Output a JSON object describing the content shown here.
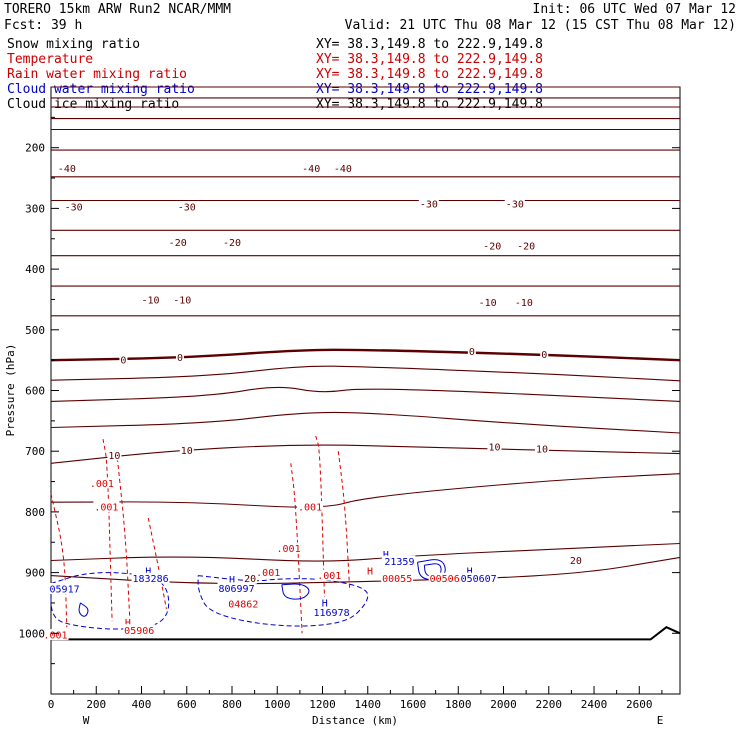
{
  "header": {
    "model": "TORERO  15km ARW   Run2    NCAR/MMM",
    "init": "Init: 06 UTC Wed 07 Mar 12",
    "fcst": "Fcst:   39 h",
    "valid": "Valid: 21 UTC Thu 08 Mar 12 (15 CST Thu 08 Mar 12)"
  },
  "legend": [
    {
      "name": "Snow mixing ratio",
      "color": "#000000",
      "xy": "XY=  38.3,149.8 to 222.9,149.8",
      "xy_color": "#000000"
    },
    {
      "name": "Temperature",
      "color": "#cc0000",
      "xy": "XY=  38.3,149.8 to 222.9,149.8",
      "xy_color": "#cc0000"
    },
    {
      "name": "Rain water mixing ratio",
      "color": "#cc0000",
      "xy": "XY=  38.3,149.8 to 222.9,149.8",
      "xy_color": "#cc0000"
    },
    {
      "name": "Cloud water mixing ratio",
      "color": "#0000cc",
      "xy": "XY=  38.3,149.8 to 222.9,149.8",
      "xy_color": "#0000cc"
    },
    {
      "name": "Cloud ice mixing ratio",
      "color": "#000000",
      "xy": "XY=  38.3,149.8 to 222.9,149.8",
      "xy_color": "#000000"
    }
  ],
  "chart_data": {
    "type": "cross-section contour",
    "title": "Vertical cross section",
    "xlabel": "Distance (km)",
    "ylabel": "Pressure (hPa)",
    "xlim": [
      0,
      2780
    ],
    "ylim": [
      1100,
      100
    ],
    "x_ticks": [
      0,
      200,
      400,
      600,
      800,
      1000,
      1200,
      1400,
      1600,
      1800,
      2000,
      2200,
      2400,
      2600
    ],
    "x_tick_labels": [
      "0",
      "200",
      "400",
      "600",
      "800",
      "1000",
      "1200",
      "1400",
      "1600",
      "1800",
      "2000",
      "2200",
      "2400",
      "2600"
    ],
    "y_ticks": [
      200,
      300,
      400,
      500,
      600,
      700,
      800,
      900,
      1000
    ],
    "y_tick_labels": [
      "200",
      "300",
      "400",
      "500",
      "600",
      "700",
      "800",
      "900",
      "1000"
    ],
    "left_end": "W",
    "right_end": "E",
    "terrain_top_p": [
      [
        0,
        1010
      ],
      [
        2650,
        1010
      ],
      [
        2720,
        990
      ],
      [
        2780,
        1000
      ]
    ],
    "temperature_contours": [
      {
        "value": -60,
        "points": [
          [
            0,
            100
          ],
          [
            2780,
            100
          ]
        ]
      },
      {
        "value": -55,
        "points": [
          [
            0,
            118
          ],
          [
            2780,
            118
          ]
        ]
      },
      {
        "value": -50,
        "points": [
          [
            0,
            133
          ],
          [
            2780,
            133
          ]
        ]
      },
      {
        "value": -45,
        "points": [
          [
            0,
            152
          ],
          [
            2780,
            152
          ]
        ]
      },
      {
        "value": -40,
        "points": [
          [
            0,
            170
          ],
          [
            2780,
            170
          ]
        ]
      },
      {
        "value": -35,
        "points": [
          [
            0,
            204
          ],
          [
            2780,
            204
          ]
        ]
      },
      {
        "value": -30,
        "points": [
          [
            0,
            248
          ],
          [
            2780,
            248
          ]
        ]
      },
      {
        "value": -25,
        "points": [
          [
            0,
            287
          ],
          [
            2780,
            287
          ]
        ]
      },
      {
        "value": -20,
        "points": [
          [
            0,
            336
          ],
          [
            2780,
            336
          ]
        ]
      },
      {
        "value": -15,
        "points": [
          [
            0,
            378
          ],
          [
            2780,
            378
          ]
        ]
      },
      {
        "value": -10,
        "points": [
          [
            0,
            428
          ],
          [
            2780,
            428
          ]
        ]
      },
      {
        "value": -5,
        "points": [
          [
            0,
            477
          ],
          [
            2780,
            477
          ]
        ]
      },
      {
        "value": 0,
        "points": [
          [
            0,
            550
          ],
          [
            600,
            546
          ],
          [
            1100,
            533
          ],
          [
            1400,
            533
          ],
          [
            2100,
            540
          ],
          [
            2780,
            550
          ]
        ]
      },
      {
        "value": 3,
        "points": [
          [
            0,
            583
          ],
          [
            700,
            577
          ],
          [
            1100,
            559
          ],
          [
            1400,
            561
          ],
          [
            2100,
            571
          ],
          [
            2780,
            584
          ]
        ]
      },
      {
        "value": 5,
        "points": [
          [
            0,
            618
          ],
          [
            700,
            610
          ],
          [
            1000,
            591
          ],
          [
            1200,
            605
          ],
          [
            1400,
            594
          ],
          [
            2780,
            618
          ]
        ]
      },
      {
        "value": 8,
        "points": [
          [
            0,
            661
          ],
          [
            700,
            654
          ],
          [
            1100,
            636
          ],
          [
            1400,
            636
          ],
          [
            2100,
            656
          ],
          [
            2780,
            670
          ]
        ]
      },
      {
        "value": 10,
        "points": [
          [
            0,
            720
          ],
          [
            500,
            700
          ],
          [
            1100,
            688
          ],
          [
            1700,
            694
          ],
          [
            2780,
            704
          ]
        ]
      },
      {
        "value": 15,
        "points": [
          [
            0,
            784
          ],
          [
            600,
            783
          ],
          [
            1200,
            796
          ],
          [
            1400,
            775
          ],
          [
            2200,
            748
          ],
          [
            2780,
            737
          ]
        ]
      },
      {
        "value": 18,
        "points": [
          [
            0,
            880
          ],
          [
            600,
            872
          ],
          [
            1200,
            884
          ],
          [
            1600,
            872
          ],
          [
            2300,
            860
          ],
          [
            2780,
            852
          ]
        ]
      },
      {
        "value": 20,
        "points": [
          [
            0,
            905
          ],
          [
            700,
            920
          ],
          [
            1400,
            915
          ],
          [
            2300,
            905
          ],
          [
            2780,
            875
          ]
        ]
      }
    ],
    "temperature_labels": [
      {
        "text": "-40",
        "x": 70,
        "p": 234
      },
      {
        "text": "-40",
        "x": 1150,
        "p": 234
      },
      {
        "text": "-40",
        "x": 1290,
        "p": 234
      },
      {
        "text": "-30",
        "x": 100,
        "p": 298
      },
      {
        "text": "-30",
        "x": 600,
        "p": 298
      },
      {
        "text": "-30",
        "x": 1670,
        "p": 293
      },
      {
        "text": "-30",
        "x": 2050,
        "p": 293
      },
      {
        "text": "-20",
        "x": 560,
        "p": 356
      },
      {
        "text": "-20",
        "x": 800,
        "p": 356
      },
      {
        "text": "-20",
        "x": 1950,
        "p": 362
      },
      {
        "text": "-20",
        "x": 2100,
        "p": 362
      },
      {
        "text": "-10",
        "x": 440,
        "p": 451
      },
      {
        "text": "-10",
        "x": 580,
        "p": 451
      },
      {
        "text": "-10",
        "x": 1930,
        "p": 455
      },
      {
        "text": "-10",
        "x": 2090,
        "p": 455
      },
      {
        "text": "0",
        "x": 320,
        "p": 550
      },
      {
        "text": "0",
        "x": 570,
        "p": 546
      },
      {
        "text": "0",
        "x": 1860,
        "p": 536
      },
      {
        "text": "0",
        "x": 2180,
        "p": 541
      },
      {
        "text": "10",
        "x": 280,
        "p": 707
      },
      {
        "text": "10",
        "x": 600,
        "p": 699
      },
      {
        "text": "10",
        "x": 1960,
        "p": 693
      },
      {
        "text": "10",
        "x": 2170,
        "p": 696
      },
      {
        "text": "20",
        "x": 880,
        "p": 910
      },
      {
        "text": "20",
        "x": 2320,
        "p": 880
      }
    ],
    "rain_water_contours": [
      {
        "value": 0.001,
        "points": [
          [
            0,
            770
          ],
          [
            60,
            870
          ],
          [
            70,
            990
          ]
        ]
      },
      {
        "value": 0.001,
        "points": [
          [
            230,
            680
          ],
          [
            250,
            720
          ],
          [
            270,
            980
          ]
        ]
      },
      {
        "value": 0.001,
        "points": [
          [
            290,
            700
          ],
          [
            330,
            840
          ],
          [
            350,
            990
          ]
        ]
      },
      {
        "value": 0.001,
        "points": [
          [
            430,
            810
          ],
          [
            480,
            900
          ],
          [
            510,
            960
          ]
        ]
      },
      {
        "value": 0.001,
        "points": [
          [
            1060,
            720
          ],
          [
            1080,
            780
          ],
          [
            1110,
            1000
          ]
        ]
      },
      {
        "value": 0.001,
        "points": [
          [
            1170,
            675
          ],
          [
            1190,
            700
          ],
          [
            1210,
            960
          ]
        ]
      },
      {
        "value": 0.001,
        "points": [
          [
            1270,
            700
          ],
          [
            1300,
            790
          ],
          [
            1320,
            930
          ]
        ]
      }
    ],
    "rain_water_labels": [
      {
        "text": ".001",
        "x": 225,
        "p": 753
      },
      {
        "text": ".001",
        "x": 245,
        "p": 792
      },
      {
        "text": ".001",
        "x": 1145,
        "p": 792
      },
      {
        "text": ".001",
        "x": 1050,
        "p": 860
      },
      {
        "text": ".001",
        "x": 960,
        "p": 900
      },
      {
        "text": ".001",
        "x": 20,
        "p": 1003
      }
    ],
    "cloud_water_max_labels": [
      {
        "text": "H",
        "x": 430,
        "p": 897
      },
      {
        "text": "183286",
        "x": 440,
        "p": 910
      },
      {
        "text": "H",
        "x": 800,
        "p": 911
      },
      {
        "text": "806997",
        "x": 820,
        "p": 926
      },
      {
        "text": "H",
        "x": 1210,
        "p": 950
      },
      {
        "text": "116978",
        "x": 1240,
        "p": 966
      },
      {
        "text": "H",
        "x": 1480,
        "p": 870
      },
      {
        "text": "21359",
        "x": 1540,
        "p": 882
      },
      {
        "text": "H",
        "x": 1850,
        "p": 897
      },
      {
        "text": "050607",
        "x": 1890,
        "p": 910
      },
      {
        "text": "05917",
        "x": 60,
        "p": 927
      }
    ],
    "rain_water_max_labels": [
      {
        "text": "H",
        "x": 1410,
        "p": 897
      },
      {
        "text": "00055",
        "x": 1530,
        "p": 910
      },
      {
        "text": "04862",
        "x": 850,
        "p": 952
      },
      {
        "text": "H",
        "x": 340,
        "p": 982
      },
      {
        "text": "05906",
        "x": 390,
        "p": 995
      },
      {
        "text": "00506",
        "x": 1740,
        "p": 910
      },
      {
        "text": ".001",
        "x": 1230,
        "p": 905
      }
    ],
    "cloud_water_contours": [
      {
        "value": 0.001,
        "points": [
          [
            0,
            918
          ],
          [
            150,
            900
          ],
          [
            350,
            900
          ],
          [
            520,
            915
          ],
          [
            520,
            985
          ],
          [
            300,
            995
          ],
          [
            100,
            988
          ],
          [
            0,
            975
          ]
        ]
      },
      {
        "value": 0.001,
        "points": [
          [
            650,
            905
          ],
          [
            900,
            915
          ],
          [
            1000,
            910
          ],
          [
            1200,
            910
          ],
          [
            1400,
            925
          ],
          [
            1400,
            950
          ],
          [
            1300,
            985
          ],
          [
            1000,
            990
          ],
          [
            700,
            968
          ],
          [
            650,
            930
          ]
        ]
      },
      {
        "value": 0.01,
        "points": [
          [
            130,
            950
          ],
          [
            170,
            960
          ],
          [
            150,
            975
          ],
          [
            120,
            965
          ]
        ]
      },
      {
        "value": 0.01,
        "points": [
          [
            1020,
            920
          ],
          [
            1110,
            918
          ],
          [
            1150,
            930
          ],
          [
            1110,
            945
          ],
          [
            1030,
            942
          ]
        ]
      },
      {
        "value": 0.05,
        "points": [
          [
            1620,
            883
          ],
          [
            1720,
            876
          ],
          [
            1750,
            895
          ],
          [
            1720,
            913
          ],
          [
            1630,
            910
          ]
        ]
      },
      {
        "value": 0.1,
        "points": [
          [
            1650,
            888
          ],
          [
            1715,
            884
          ],
          [
            1728,
            896
          ],
          [
            1710,
            908
          ],
          [
            1655,
            905
          ]
        ]
      }
    ]
  }
}
